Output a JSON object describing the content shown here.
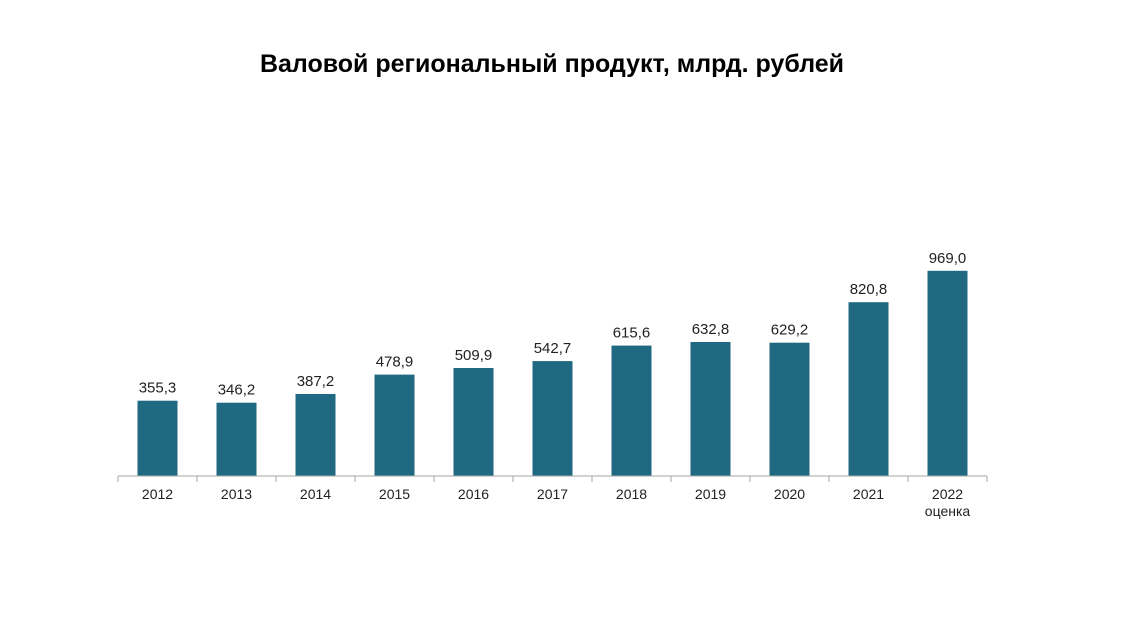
{
  "chart_data": {
    "type": "bar",
    "title": "Валовой региональный продукт, млрд. рублей",
    "categories": [
      [
        "2012"
      ],
      [
        "2013"
      ],
      [
        "2014"
      ],
      [
        "2015"
      ],
      [
        "2016"
      ],
      [
        "2017"
      ],
      [
        "2018"
      ],
      [
        "2019"
      ],
      [
        "2020"
      ],
      [
        "2021"
      ],
      [
        "2022",
        "оценка"
      ]
    ],
    "values": [
      355.3,
      346.2,
      387.2,
      478.9,
      509.9,
      542.7,
      615.6,
      632.8,
      629.2,
      820.8,
      969.0
    ],
    "value_labels": [
      "355,3",
      "346,2",
      "387,2",
      "478,9",
      "509,9",
      "542,7",
      "615,6",
      "632,8",
      "629,2",
      "820,8",
      "969,0"
    ],
    "xlabel": "",
    "ylabel": "",
    "ylim": [
      0,
      1000
    ],
    "grid": false,
    "legend": "none",
    "bar_color": "#1f6a82",
    "axis_color": "#a6a6a6"
  }
}
